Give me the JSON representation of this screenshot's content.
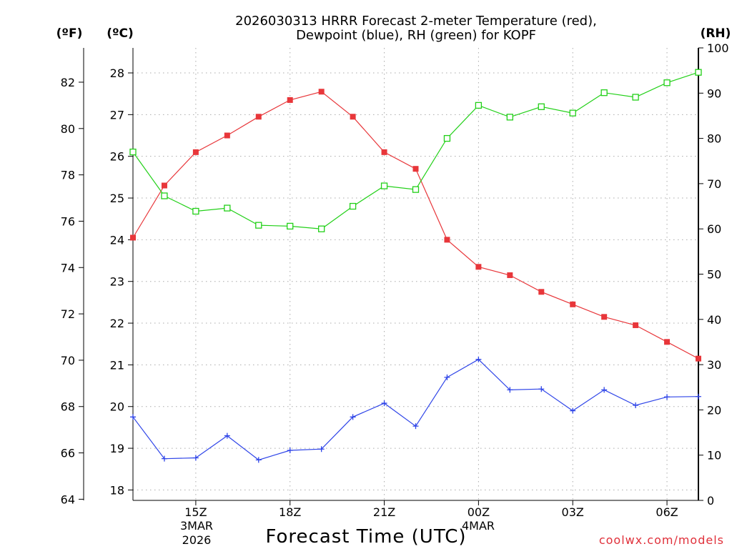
{
  "title_lines": [
    "2026030313 HRRR Forecast 2-meter Temperature (red),",
    "Dewpoint (blue), RH (green) for KOPF"
  ],
  "unit_labels": {
    "fahrenheit": "(ºF)",
    "celsius": "(ºC)",
    "rh": "(RH)"
  },
  "xlabel": "Forecast Time (UTC)",
  "credit": "coolwx.com/models",
  "date_labels": {
    "start_day": "3MAR",
    "start_year": "2026",
    "next_day": "4MAR"
  },
  "colors": {
    "temperature": "#e8363a",
    "dewpoint": "#2e44e8",
    "rh": "#22d018",
    "grid": "#aaaaaa"
  },
  "chart_data": {
    "type": "line",
    "title": "2026030313 HRRR Forecast 2-meter Temperature (red), Dewpoint (blue), RH (green) for KOPF",
    "xlabel": "Forecast Time (UTC)",
    "x_hours_from_13z": [
      0,
      1,
      2,
      3,
      4,
      5,
      6,
      7,
      8,
      9,
      10,
      11,
      12,
      13,
      14,
      15,
      16,
      17,
      18
    ],
    "x_tick_hours": [
      2,
      5,
      8,
      11,
      14,
      17
    ],
    "x_tick_labels": [
      "15Z",
      "18Z",
      "21Z",
      "00Z",
      "03Z",
      "06Z"
    ],
    "x_range": [
      0,
      18
    ],
    "celsius_axis": {
      "range": [
        17.75,
        28.6
      ],
      "ticks": [
        18,
        19,
        20,
        21,
        22,
        23,
        24,
        25,
        26,
        27,
        28
      ]
    },
    "fahrenheit_axis": {
      "ticks": [
        64,
        66,
        68,
        70,
        72,
        74,
        76,
        78,
        80,
        82
      ]
    },
    "rh_axis": {
      "range": [
        0,
        100
      ],
      "ticks": [
        0,
        10,
        20,
        30,
        40,
        50,
        60,
        70,
        80,
        90,
        100
      ]
    },
    "series": [
      {
        "name": "Temperature",
        "unit": "C",
        "marker": "filled-square",
        "values": [
          24.05,
          25.3,
          26.1,
          26.5,
          26.95,
          27.35,
          27.55,
          26.95,
          26.1,
          25.7,
          24.0,
          23.35,
          23.15,
          22.75,
          22.45,
          22.15,
          21.95,
          21.55,
          21.15
        ]
      },
      {
        "name": "Dewpoint",
        "unit": "C",
        "marker": "plus",
        "values": [
          19.75,
          18.75,
          18.77,
          19.3,
          18.72,
          18.95,
          18.98,
          19.75,
          20.08,
          19.53,
          20.7,
          21.13,
          20.4,
          20.42,
          19.9,
          20.4,
          20.03,
          20.23,
          20.24
        ]
      },
      {
        "name": "RH",
        "unit": "%",
        "marker": "open-square",
        "values": [
          77,
          67.3,
          63.9,
          64.6,
          60.8,
          60.6,
          60.0,
          65.0,
          69.5,
          68.7,
          80.0,
          87.3,
          84.7,
          87.0,
          85.6,
          90.1,
          89.1,
          92.3,
          94.6
        ]
      }
    ]
  }
}
